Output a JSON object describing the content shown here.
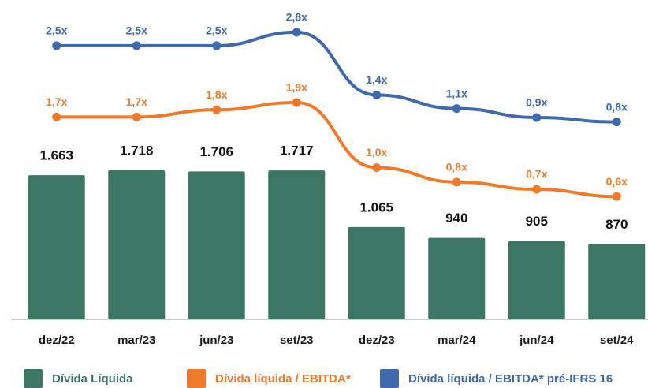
{
  "chart_data": {
    "type": "combo",
    "categories": [
      "dez/22",
      "mar/23",
      "jun/23",
      "set/23",
      "dez/23",
      "mar/24",
      "jun/24",
      "set/24"
    ],
    "series": [
      {
        "name": "Dívida Líquida",
        "type": "bar",
        "color": "#3b7764",
        "values": [
          1663,
          1718,
          1706,
          1717,
          1065,
          940,
          905,
          870
        ],
        "value_labels": [
          "1.663",
          "1.718",
          "1.706",
          "1.717",
          "1.065",
          "940",
          "905",
          "870"
        ]
      },
      {
        "name": "Dívida líquida / EBITDA*",
        "type": "line",
        "axis": "y3",
        "color": "#f07a2a",
        "values": [
          1.7,
          1.7,
          1.8,
          1.9,
          1.0,
          0.8,
          0.7,
          0.6
        ],
        "value_labels": [
          "1,7x",
          "1,7x",
          "1,8x",
          "1,9x",
          "1,0x",
          "0,8x",
          "0,7x",
          "0,6x"
        ]
      },
      {
        "name": "Dívida líquida / EBITDA* pré-IFRS 16",
        "type": "line",
        "axis": "y2",
        "color": "#3d6aad",
        "values": [
          2.5,
          2.5,
          2.5,
          2.8,
          1.4,
          1.1,
          0.9,
          0.8
        ],
        "value_labels": [
          "2,5x",
          "2,5x",
          "2,5x",
          "2,8x",
          "1,4x",
          "1,1x",
          "0,9x",
          "0,8x"
        ]
      }
    ],
    "ylim": [
      0,
      3000
    ],
    "y2lim": [
      -3.6,
      2.2
    ],
    "y3lim": [
      -1.1,
      2.5
    ],
    "legend": "bottom"
  }
}
